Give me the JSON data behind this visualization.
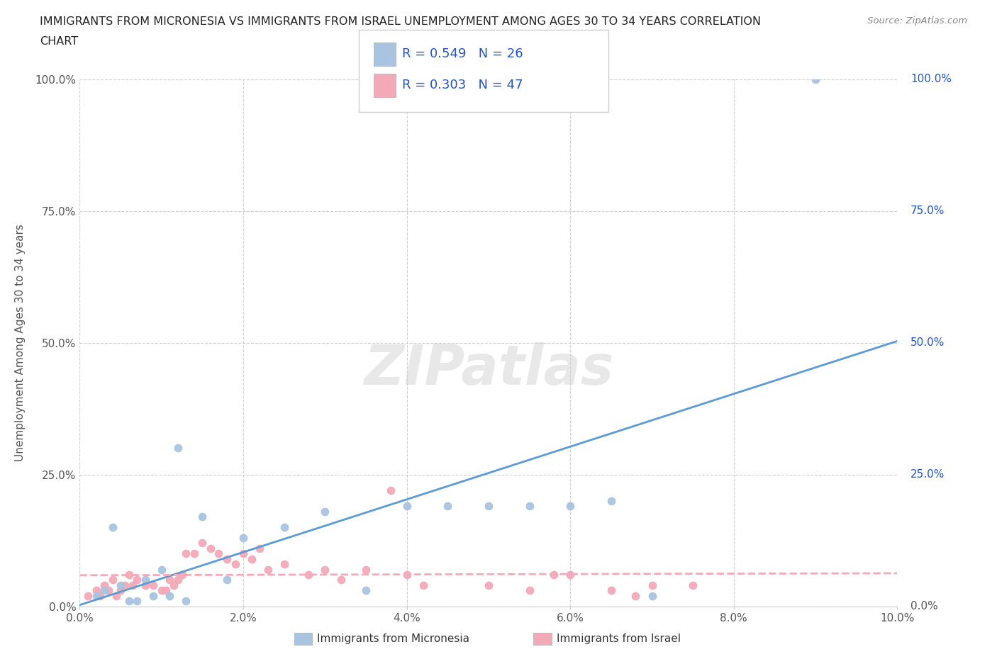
{
  "title_line1": "IMMIGRANTS FROM MICRONESIA VS IMMIGRANTS FROM ISRAEL UNEMPLOYMENT AMONG AGES 30 TO 34 YEARS CORRELATION",
  "title_line2": "CHART",
  "source_text": "Source: ZipAtlas.com",
  "ylabel": "Unemployment Among Ages 30 to 34 years",
  "xlim": [
    0,
    10.0
  ],
  "ylim": [
    0,
    100.0
  ],
  "xtick_labels": [
    "0.0%",
    "2.0%",
    "4.0%",
    "6.0%",
    "8.0%",
    "10.0%"
  ],
  "xtick_vals": [
    0,
    2,
    4,
    6,
    8,
    10
  ],
  "ytick_labels": [
    "0.0%",
    "25.0%",
    "50.0%",
    "75.0%",
    "100.0%"
  ],
  "ytick_vals": [
    0,
    25,
    50,
    75,
    100
  ],
  "micronesia_color": "#a8c4e0",
  "israel_color": "#f4a9b8",
  "micronesia_line_color": "#5b9bd5",
  "israel_line_color": "#f4a9b8",
  "micronesia_R": 0.549,
  "micronesia_N": 26,
  "israel_R": 0.303,
  "israel_N": 47,
  "legend_color": "#2255cc",
  "watermark_color": "#cccccc",
  "background_color": "#ffffff",
  "grid_color": "#d0d0d0",
  "micronesia_x": [
    0.2,
    0.3,
    0.4,
    0.5,
    0.6,
    0.7,
    0.8,
    0.9,
    1.0,
    1.1,
    1.2,
    1.5,
    1.8,
    2.0,
    2.5,
    3.0,
    3.5,
    4.0,
    4.5,
    5.0,
    5.5,
    6.0,
    6.5,
    7.0,
    9.0,
    1.3
  ],
  "micronesia_y": [
    2,
    3,
    15,
    4,
    1,
    1,
    5,
    2,
    7,
    2,
    30,
    17,
    5,
    13,
    15,
    18,
    3,
    19,
    19,
    19,
    19,
    19,
    20,
    2,
    100,
    1
  ],
  "israel_x": [
    0.1,
    0.2,
    0.3,
    0.4,
    0.5,
    0.6,
    0.7,
    0.8,
    0.9,
    1.0,
    1.1,
    1.2,
    1.3,
    1.4,
    1.5,
    1.6,
    1.7,
    1.8,
    1.9,
    2.0,
    2.1,
    2.2,
    2.5,
    2.8,
    3.0,
    3.2,
    3.5,
    4.0,
    4.2,
    5.0,
    5.5,
    6.0,
    6.5,
    7.0,
    7.5,
    0.25,
    0.35,
    0.45,
    0.55,
    0.65,
    1.05,
    1.15,
    1.25,
    5.8,
    3.8,
    2.3,
    6.8
  ],
  "israel_y": [
    2,
    3,
    4,
    5,
    3,
    6,
    5,
    4,
    4,
    3,
    5,
    5,
    10,
    10,
    12,
    11,
    10,
    9,
    8,
    10,
    9,
    11,
    8,
    6,
    7,
    5,
    7,
    6,
    4,
    4,
    3,
    6,
    3,
    4,
    4,
    2,
    3,
    2,
    4,
    4,
    3,
    4,
    6,
    6,
    22,
    7,
    2
  ]
}
